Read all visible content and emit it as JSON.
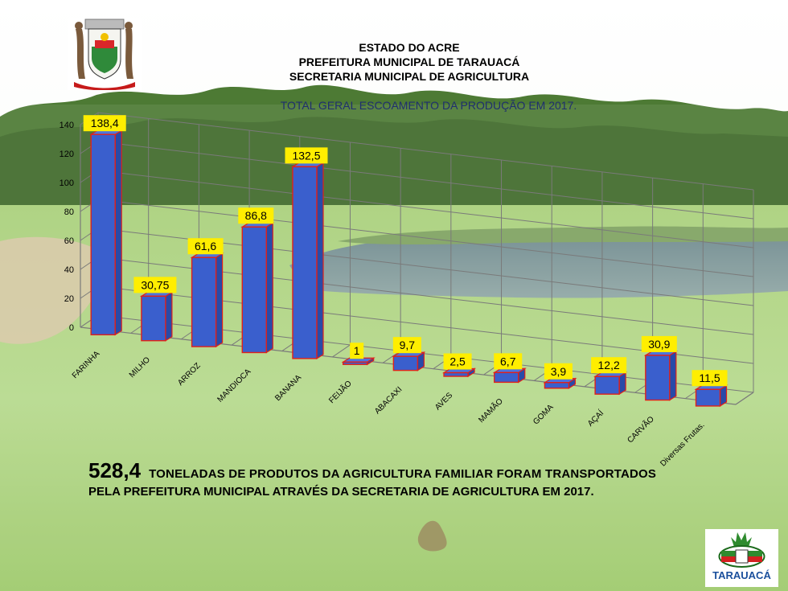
{
  "header": {
    "line1": "ESTADO DO ACRE",
    "line2": "PREFEITURA MUNICIPAL DE TARAUACÁ",
    "line3": "SECRETARIA MUNICIPAL DE AGRICULTURA"
  },
  "chart_data": {
    "type": "bar",
    "title": "TOTAL GERAL ESCOAMENTO  DA PRODUÇÃO EM 2017.",
    "categories": [
      "FARINHA",
      "MILHO",
      "ARROZ",
      "MANDIOCA",
      "BANANA",
      "FEIJÃO",
      "ABACAXI",
      "AVES",
      "MAMÃO",
      "GOMA",
      "AÇAÍ",
      "CARVÃO",
      "Diversas Frutas."
    ],
    "values": [
      138.4,
      30.75,
      61.6,
      86.8,
      132.5,
      1,
      9.7,
      2.5,
      6.7,
      3.9,
      12.2,
      30.9,
      11.5
    ],
    "data_labels": [
      "138,4",
      "30,75",
      "61,6",
      "86,8",
      "132,5",
      "1",
      "9,7",
      "2,5",
      "6,7",
      "3,9",
      "12,2",
      "30,9",
      "11,5"
    ],
    "y_ticks": [
      "0",
      "20",
      "40",
      "60",
      "80",
      "100",
      "120",
      "140"
    ],
    "ylim": [
      0,
      140
    ],
    "grid": true,
    "bar_color": "#3a5fcd",
    "bar_edge_color": "#e0201a",
    "label_bg_color": "#ffee00"
  },
  "summary": {
    "total": "528,4",
    "line1": "TONELADAS DE PRODUTOS DA AGRICULTURA FAMILIAR FORAM TRANSPORTADOS",
    "line2": "PELA PREFEITURA MUNICIPAL ATRAVÉS DA SECRETARIA DE AGRICULTURA EM 2017."
  },
  "logo": {
    "text": "TARAUACÁ"
  }
}
